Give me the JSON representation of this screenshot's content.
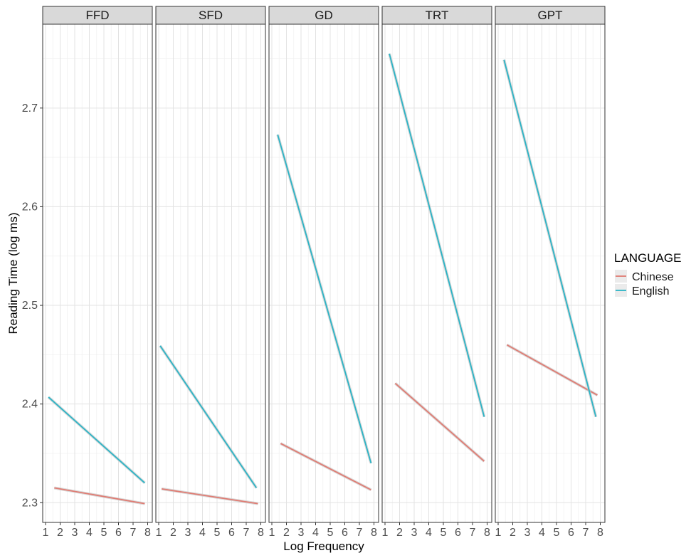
{
  "chart_data": {
    "type": "line",
    "facets": [
      "FFD",
      "SFD",
      "GD",
      "TRT",
      "GPT"
    ],
    "xlabel": "Log Frequency",
    "ylabel": "Reading Time (log ms)",
    "xlim": [
      1,
      8
    ],
    "ylim": [
      2.28,
      2.785
    ],
    "x_ticks": [
      1,
      2,
      3,
      4,
      5,
      6,
      7,
      8
    ],
    "y_ticks": [
      2.3,
      2.4,
      2.5,
      2.6,
      2.7
    ],
    "y_tick_labels": [
      "2.3",
      "2.4",
      "2.5",
      "2.6",
      "2.7"
    ],
    "grid": true,
    "legend": {
      "title": "LANGUAGE",
      "position": "right",
      "entries": [
        "Chinese",
        "English"
      ]
    },
    "colors": {
      "Chinese": "#E07B72",
      "English": "#2BB4C6"
    },
    "panels": [
      {
        "facet": "FFD",
        "series": [
          {
            "name": "Chinese",
            "x": [
              1.6,
              7.8
            ],
            "y": [
              2.315,
              2.299
            ]
          },
          {
            "name": "English",
            "x": [
              1.2,
              7.8
            ],
            "y": [
              2.407,
              2.32
            ]
          }
        ]
      },
      {
        "facet": "SFD",
        "series": [
          {
            "name": "Chinese",
            "x": [
              1.2,
              7.8
            ],
            "y": [
              2.314,
              2.299
            ]
          },
          {
            "name": "English",
            "x": [
              1.1,
              7.7
            ],
            "y": [
              2.459,
              2.315
            ]
          }
        ]
      },
      {
        "facet": "GD",
        "series": [
          {
            "name": "Chinese",
            "x": [
              1.6,
              7.8
            ],
            "y": [
              2.36,
              2.313
            ]
          },
          {
            "name": "English",
            "x": [
              1.4,
              7.8
            ],
            "y": [
              2.673,
              2.34
            ]
          }
        ]
      },
      {
        "facet": "TRT",
        "series": [
          {
            "name": "Chinese",
            "x": [
              1.7,
              7.8
            ],
            "y": [
              2.421,
              2.342
            ]
          },
          {
            "name": "English",
            "x": [
              1.3,
              7.8
            ],
            "y": [
              2.755,
              2.387
            ]
          }
        ]
      },
      {
        "facet": "GPT",
        "series": [
          {
            "name": "Chinese",
            "x": [
              1.6,
              7.8
            ],
            "y": [
              2.46,
              2.409
            ]
          },
          {
            "name": "English",
            "x": [
              1.4,
              7.7
            ],
            "y": [
              2.749,
              2.387
            ]
          }
        ]
      }
    ]
  }
}
